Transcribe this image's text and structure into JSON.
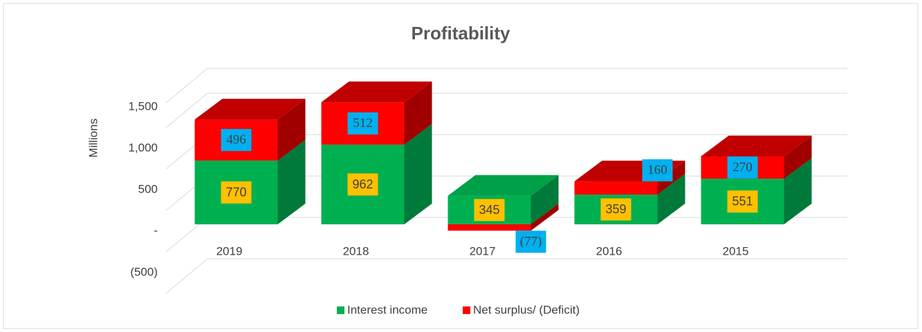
{
  "chart_data": {
    "type": "bar3d_stacked",
    "title": "Profitability",
    "y_axis_label": "Millions",
    "categories": [
      "2019",
      "2018",
      "2017",
      "2016",
      "2015"
    ],
    "series": [
      {
        "name": "Interest income",
        "color": "#00b050",
        "side_color": "#007a3a",
        "top_color": "#00a049",
        "label_color": "#ffc000",
        "values": [
          770,
          962,
          345,
          359,
          551
        ]
      },
      {
        "name": "Net surplus/ (Deficit)",
        "color": "#ff0000",
        "side_color": "#a00000",
        "top_color": "#c00000",
        "label_color": "#00b0f0",
        "values": [
          496,
          512,
          -77,
          160,
          270
        ],
        "value_labels": [
          "496",
          "512",
          "(77)",
          "160",
          "270"
        ]
      }
    ],
    "ylim": [
      -500,
      1800
    ],
    "yticks": [
      {
        "value": -500,
        "label": "(500)"
      },
      {
        "value": 0,
        "label": "-"
      },
      500,
      {
        "value": 1000,
        "label": "1,000"
      },
      {
        "value": 1500,
        "label": "1,500"
      }
    ],
    "grid": true,
    "legend": "bottom"
  }
}
